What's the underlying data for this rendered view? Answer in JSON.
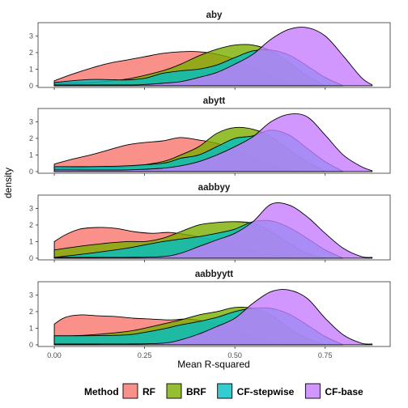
{
  "chart_data": {
    "type": "area",
    "xlabel": "Mean R-squared",
    "ylabel": "density",
    "xlim": [
      -0.045,
      0.93
    ],
    "ylim": [
      -0.1,
      3.8
    ],
    "x_ticks": [
      0,
      0.25,
      0.5,
      0.75
    ],
    "x_tick_labels": [
      "0.00",
      "0.25",
      "0.50",
      "0.75"
    ],
    "y_ticks": [
      0,
      1,
      2,
      3
    ],
    "y_tick_labels": [
      "0",
      "1",
      "2",
      "3"
    ],
    "legend": {
      "title": "Method",
      "position": "bottom",
      "entries": [
        {
          "name": "RF",
          "color": "#F8766D"
        },
        {
          "name": "BRF",
          "color": "#7CAE00"
        },
        {
          "name": "CF-stepwise",
          "color": "#00BFC4"
        },
        {
          "name": "CF-base",
          "color": "#C77CFF"
        }
      ]
    },
    "fill_opacity": 0.8,
    "panels": [
      {
        "title": "aby",
        "series": [
          {
            "name": "RF",
            "x": [
              0.0,
              0.05,
              0.1,
              0.15,
              0.2,
              0.25,
              0.3,
              0.35,
              0.4,
              0.45,
              0.5,
              0.55,
              0.6,
              0.65,
              0.7
            ],
            "y": [
              0.3,
              0.7,
              1.05,
              1.35,
              1.55,
              1.75,
              1.95,
              2.05,
              2.05,
              1.9,
              1.6,
              1.1,
              0.6,
              0.2,
              0.0
            ]
          },
          {
            "name": "BRF",
            "x": [
              0.0,
              0.1,
              0.2,
              0.3,
              0.35,
              0.4,
              0.45,
              0.5,
              0.55,
              0.6,
              0.65,
              0.7,
              0.75
            ],
            "y": [
              0.15,
              0.2,
              0.4,
              0.9,
              1.3,
              1.8,
              2.2,
              2.45,
              2.45,
              2.1,
              1.4,
              0.6,
              0.0
            ]
          },
          {
            "name": "CF-stepwise",
            "x": [
              0.0,
              0.1,
              0.2,
              0.25,
              0.3,
              0.35,
              0.4,
              0.45,
              0.5,
              0.55,
              0.6,
              0.65,
              0.7,
              0.75,
              0.8
            ],
            "y": [
              0.2,
              0.38,
              0.35,
              0.45,
              0.75,
              0.9,
              1.0,
              1.25,
              1.7,
              2.1,
              2.15,
              1.85,
              1.2,
              0.5,
              0.0
            ]
          },
          {
            "name": "CF-base",
            "x": [
              0.0,
              0.2,
              0.25,
              0.3,
              0.35,
              0.4,
              0.45,
              0.5,
              0.55,
              0.6,
              0.65,
              0.7,
              0.75,
              0.8,
              0.85,
              0.88
            ],
            "y": [
              0.05,
              0.05,
              0.08,
              0.15,
              0.25,
              0.5,
              0.8,
              1.3,
              1.9,
              2.8,
              3.4,
              3.5,
              3.0,
              1.8,
              0.5,
              0.05
            ]
          }
        ]
      },
      {
        "title": "abytt",
        "series": [
          {
            "name": "RF",
            "x": [
              0.0,
              0.05,
              0.1,
              0.15,
              0.2,
              0.25,
              0.3,
              0.35,
              0.4,
              0.45,
              0.5,
              0.55,
              0.6,
              0.65,
              0.7
            ],
            "y": [
              0.45,
              0.75,
              1.0,
              1.3,
              1.6,
              1.75,
              1.85,
              2.05,
              1.9,
              1.7,
              1.3,
              0.85,
              0.4,
              0.1,
              0.0
            ]
          },
          {
            "name": "BRF",
            "x": [
              0.0,
              0.1,
              0.2,
              0.3,
              0.35,
              0.4,
              0.45,
              0.5,
              0.55,
              0.6,
              0.65,
              0.7,
              0.75
            ],
            "y": [
              0.2,
              0.25,
              0.3,
              0.6,
              1.0,
              1.5,
              2.3,
              2.65,
              2.55,
              2.1,
              1.3,
              0.6,
              0.0
            ]
          },
          {
            "name": "CF-stepwise",
            "x": [
              0.0,
              0.1,
              0.2,
              0.3,
              0.35,
              0.4,
              0.45,
              0.5,
              0.55,
              0.6,
              0.65,
              0.7,
              0.75,
              0.8
            ],
            "y": [
              0.3,
              0.3,
              0.35,
              0.5,
              0.8,
              1.0,
              1.5,
              2.0,
              2.15,
              2.5,
              2.2,
              1.4,
              0.6,
              0.0
            ]
          },
          {
            "name": "CF-base",
            "x": [
              0.0,
              0.2,
              0.3,
              0.35,
              0.4,
              0.45,
              0.5,
              0.55,
              0.6,
              0.65,
              0.7,
              0.75,
              0.8,
              0.85,
              0.88
            ],
            "y": [
              0.1,
              0.1,
              0.2,
              0.35,
              0.6,
              1.0,
              1.5,
              2.1,
              3.0,
              3.45,
              3.3,
              2.2,
              1.0,
              0.3,
              0.05
            ]
          }
        ]
      },
      {
        "title": "aabbyy",
        "series": [
          {
            "name": "RF",
            "x": [
              0.0,
              0.03,
              0.07,
              0.12,
              0.17,
              0.22,
              0.27,
              0.32,
              0.37,
              0.42,
              0.47,
              0.52,
              0.57,
              0.62,
              0.67
            ],
            "y": [
              1.0,
              1.4,
              1.75,
              1.85,
              1.8,
              1.6,
              1.5,
              1.55,
              1.4,
              1.2,
              0.95,
              0.65,
              0.35,
              0.1,
              0.0
            ]
          },
          {
            "name": "BRF",
            "x": [
              0.0,
              0.1,
              0.2,
              0.25,
              0.3,
              0.35,
              0.4,
              0.45,
              0.5,
              0.55,
              0.6,
              0.65,
              0.7,
              0.75
            ],
            "y": [
              0.5,
              0.8,
              1.0,
              1.0,
              1.2,
              1.6,
              2.0,
              2.15,
              2.2,
              2.1,
              1.6,
              0.9,
              0.3,
              0.0
            ]
          },
          {
            "name": "CF-stepwise",
            "x": [
              0.0,
              0.1,
              0.2,
              0.25,
              0.3,
              0.35,
              0.4,
              0.45,
              0.5,
              0.55,
              0.6,
              0.65,
              0.7,
              0.75,
              0.8
            ],
            "y": [
              0.05,
              0.3,
              0.6,
              0.8,
              1.0,
              1.15,
              1.3,
              1.5,
              1.75,
              2.2,
              2.25,
              1.85,
              1.2,
              0.5,
              0.0
            ]
          },
          {
            "name": "CF-base",
            "x": [
              0.0,
              0.2,
              0.3,
              0.35,
              0.4,
              0.45,
              0.5,
              0.55,
              0.6,
              0.65,
              0.7,
              0.75,
              0.8,
              0.85,
              0.88
            ],
            "y": [
              0.05,
              0.05,
              0.1,
              0.3,
              0.7,
              1.1,
              1.5,
              2.2,
              3.25,
              3.2,
              2.5,
              1.5,
              0.6,
              0.1,
              0.05
            ]
          }
        ]
      },
      {
        "title": "aabbyytt",
        "series": [
          {
            "name": "RF",
            "x": [
              0.0,
              0.03,
              0.07,
              0.12,
              0.17,
              0.22,
              0.27,
              0.32,
              0.37,
              0.42,
              0.47,
              0.52,
              0.57,
              0.62,
              0.67
            ],
            "y": [
              1.25,
              1.65,
              1.8,
              1.75,
              1.7,
              1.6,
              1.55,
              1.5,
              1.55,
              1.4,
              1.1,
              0.7,
              0.35,
              0.1,
              0.0
            ]
          },
          {
            "name": "BRF",
            "x": [
              0.0,
              0.1,
              0.2,
              0.25,
              0.3,
              0.35,
              0.4,
              0.45,
              0.5,
              0.55,
              0.6,
              0.65,
              0.7,
              0.75
            ],
            "y": [
              0.5,
              0.6,
              0.8,
              1.0,
              1.25,
              1.5,
              1.8,
              2.0,
              2.25,
              2.2,
              1.8,
              1.0,
              0.4,
              0.0
            ]
          },
          {
            "name": "CF-stepwise",
            "x": [
              0.0,
              0.1,
              0.2,
              0.25,
              0.3,
              0.35,
              0.4,
              0.45,
              0.5,
              0.55,
              0.6,
              0.65,
              0.7,
              0.75,
              0.8
            ],
            "y": [
              0.55,
              0.55,
              0.6,
              0.75,
              0.95,
              1.2,
              1.4,
              1.65,
              2.0,
              2.2,
              2.2,
              1.85,
              1.2,
              0.5,
              0.0
            ]
          },
          {
            "name": "CF-base",
            "x": [
              0.0,
              0.2,
              0.3,
              0.35,
              0.4,
              0.45,
              0.5,
              0.55,
              0.6,
              0.65,
              0.7,
              0.75,
              0.8,
              0.85,
              0.88
            ],
            "y": [
              0.05,
              0.05,
              0.1,
              0.3,
              0.65,
              1.1,
              1.6,
              2.5,
              3.2,
              3.3,
              2.8,
              1.6,
              0.6,
              0.1,
              0.05
            ]
          }
        ]
      }
    ]
  }
}
